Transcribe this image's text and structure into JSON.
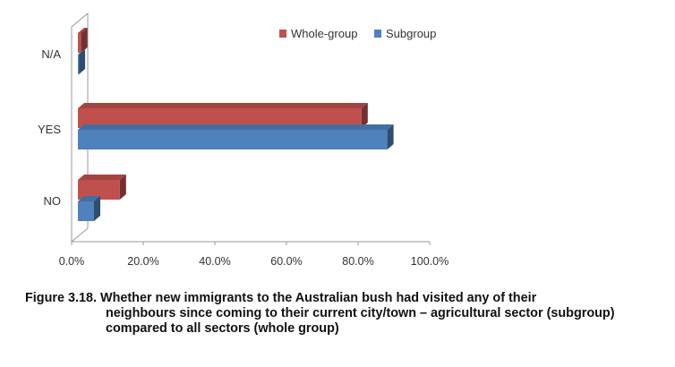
{
  "chart_data": {
    "type": "bar",
    "orientation": "horizontal",
    "three_d": true,
    "categories": [
      "NO",
      "YES",
      "N/A"
    ],
    "series": [
      {
        "name": "Whole-group",
        "color": "#c0504d",
        "values": [
          13.0,
          88.0,
          1.0
        ]
      },
      {
        "name": "Subgroup",
        "color": "#4f81bd",
        "values": [
          5.0,
          96.0,
          0.3
        ]
      }
    ],
    "xlim": [
      0,
      100
    ],
    "xticks": [
      0,
      20,
      40,
      60,
      80,
      100
    ],
    "xtick_labels": [
      "0.0%",
      "20.0%",
      "40.0%",
      "60.0%",
      "80.0%",
      "100.0%"
    ],
    "legend_position": "top-right",
    "grid": false,
    "title": "",
    "xlabel": "",
    "ylabel": ""
  },
  "caption": {
    "label": "Figure 3.18.",
    "line1": "Whether new immigrants to the Australian bush had visited any of their",
    "rest": "neighbours since coming to their current city/town – agricultural sector (subgroup) compared to all sectors (whole group)"
  }
}
